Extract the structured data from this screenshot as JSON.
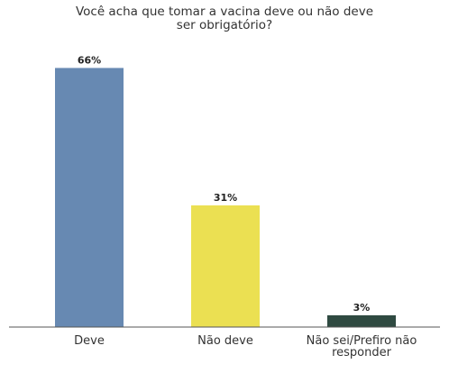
{
  "chart_data": {
    "type": "bar",
    "title_lines": [
      "Você acha que tomar a vacina deve ou não deve",
      "ser obrigatório?"
    ],
    "categories": [
      {
        "label_lines": [
          "Deve"
        ]
      },
      {
        "label_lines": [
          "Não deve"
        ]
      },
      {
        "label_lines": [
          "Não sei/Prefiro não",
          "responder"
        ]
      }
    ],
    "values": [
      66,
      31,
      3
    ],
    "value_labels": [
      "66%",
      "31%",
      "3%"
    ],
    "colors": [
      "#6789b2",
      "#ebe052",
      "#2f4a41"
    ],
    "ylim": [
      0,
      70
    ],
    "grid": false
  }
}
